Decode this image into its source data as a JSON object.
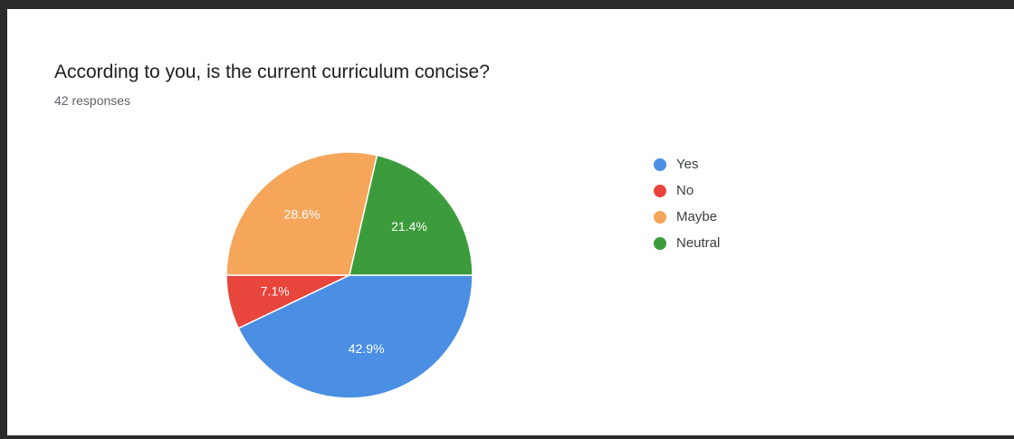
{
  "header": {
    "title": "According to you, is the current curriculum concise?",
    "responses": "42 responses"
  },
  "chart_data": {
    "type": "pie",
    "title": "According to you, is the current curriculum concise?",
    "slices": [
      {
        "label": "Yes",
        "value": 42.9,
        "display": "42.9%",
        "color": "#4a8fe3"
      },
      {
        "label": "No",
        "value": 7.1,
        "display": "7.1%",
        "color": "#e8453c"
      },
      {
        "label": "Maybe",
        "value": 28.6,
        "display": "28.6%",
        "color": "#f5a65b"
      },
      {
        "label": "Neutral",
        "value": 21.4,
        "display": "21.4%",
        "color": "#3c9c3c"
      }
    ],
    "legend_position": "right"
  },
  "legend": [
    {
      "label": "Yes",
      "color": "#4a8fe3"
    },
    {
      "label": "No",
      "color": "#e8453c"
    },
    {
      "label": "Maybe",
      "color": "#f5a65b"
    },
    {
      "label": "Neutral",
      "color": "#3c9c3c"
    }
  ]
}
